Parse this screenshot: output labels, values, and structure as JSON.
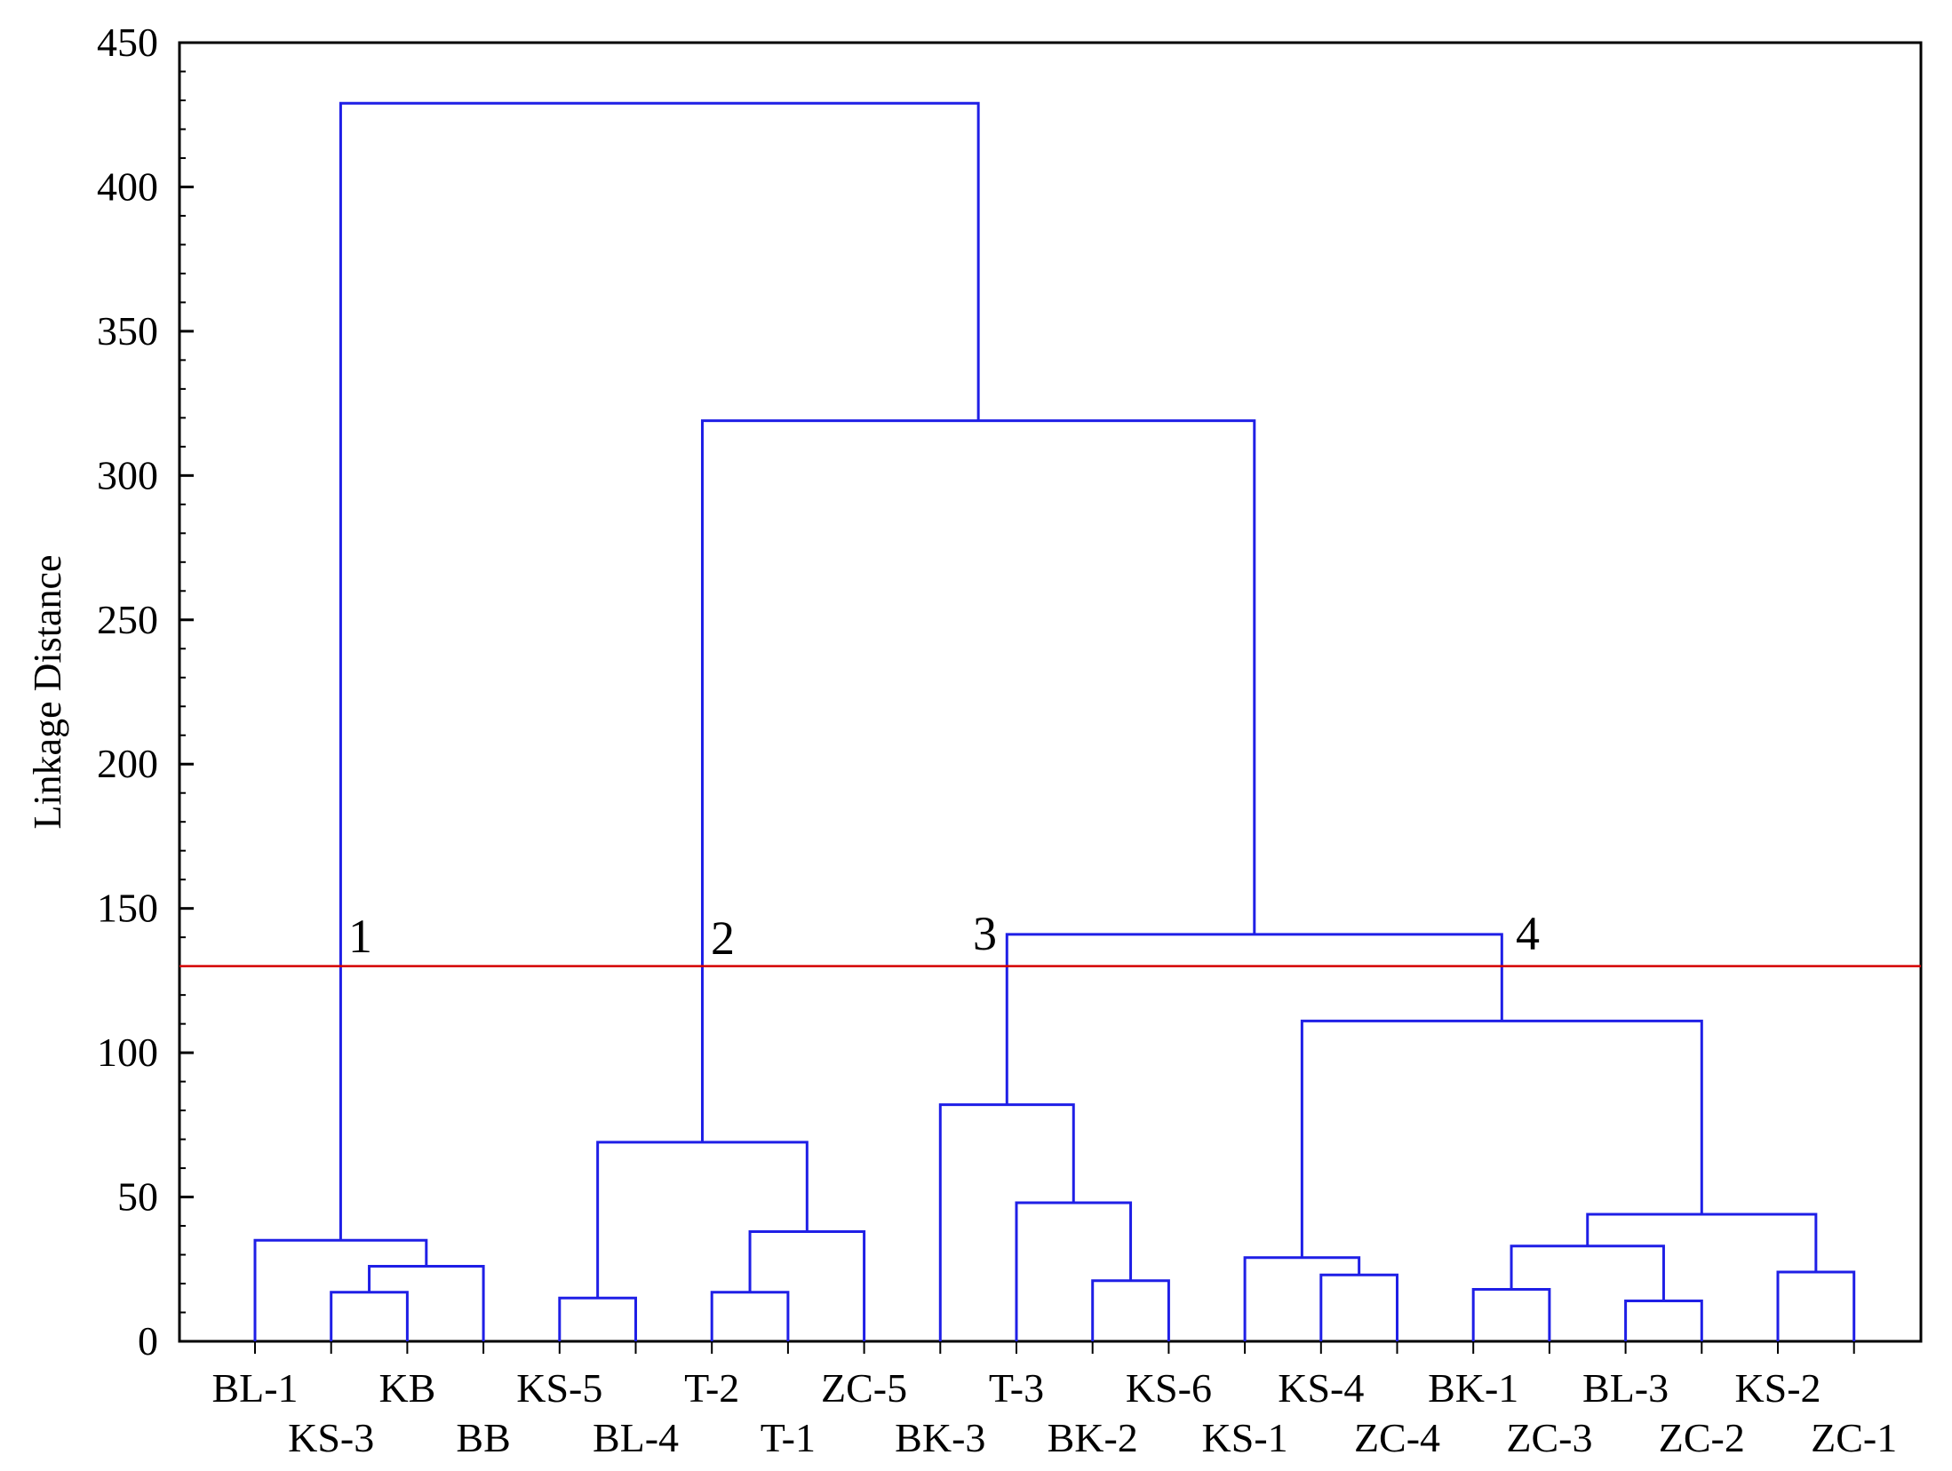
{
  "chart_data": {
    "type": "dendrogram",
    "title": "",
    "xlabel": "",
    "ylabel": "Linkage Distance",
    "ylim": [
      0,
      450
    ],
    "yticks": [
      0,
      50,
      100,
      150,
      200,
      250,
      300,
      350,
      400,
      450
    ],
    "grid": false,
    "leaves": [
      "BL-1",
      "KS-3",
      "KB",
      "BB",
      "KS-5",
      "BL-4",
      "T-2",
      "T-1",
      "ZC-5",
      "BK-3",
      "T-3",
      "BK-2",
      "KS-6",
      "KS-1",
      "KS-4",
      "ZC-4",
      "BK-1",
      "ZC-3",
      "BL-3",
      "ZC-2",
      "KS-2",
      "ZC-1"
    ],
    "merges": [
      {
        "left": "KS-3",
        "right": "KB",
        "height": 17
      },
      {
        "left": "KS-5",
        "right": "BL-4",
        "height": 15
      },
      {
        "left": "T-2",
        "right": "T-1",
        "height": 17
      },
      {
        "left": "KS-6",
        "right": "BK-2",
        "height": 21
      },
      {
        "left": "ZC-4",
        "right": "KS-4",
        "height": 23
      },
      {
        "left": "BK-1",
        "right": "ZC-3",
        "height": 18
      },
      {
        "left": "ZC-2",
        "right": "BL-3",
        "height": 14
      },
      {
        "left": "KS-2",
        "right": "ZC-1",
        "height": 24
      },
      {
        "left": "KS-3",
        "right": "BB",
        "height": 26
      },
      {
        "left": "BL-1",
        "right": "KS-3",
        "height": 35
      },
      {
        "left": "T-2",
        "right": "ZC-5",
        "height": 38
      },
      {
        "left": "KS-5",
        "right": "T-2",
        "height": 69
      },
      {
        "left": "T-3",
        "right": "KS-6",
        "height": 48
      },
      {
        "left": "BK-3",
        "right": "T-3",
        "height": 82
      },
      {
        "left": "KS-1",
        "right": "ZC-4",
        "height": 29
      },
      {
        "left": "BK-1",
        "right": "ZC-2",
        "height": 33
      },
      {
        "left": "BK-1",
        "right": "KS-2",
        "height": 44
      },
      {
        "left": "KS-1",
        "right": "BK-1",
        "height": 111
      },
      {
        "left": "BK-3",
        "right": "KS-1",
        "height": 141
      },
      {
        "left": "KS-5",
        "right": "BK-3",
        "height": 319
      },
      {
        "left": "BL-1",
        "right": "KS-5",
        "height": 429
      }
    ],
    "cut_line": {
      "height": 130,
      "color": "#d40000"
    },
    "clusters": [
      "1",
      "2",
      "3",
      "4"
    ],
    "colors": {
      "tree": "#1f1fe6",
      "cut": "#d40000",
      "axis": "#000000"
    }
  }
}
